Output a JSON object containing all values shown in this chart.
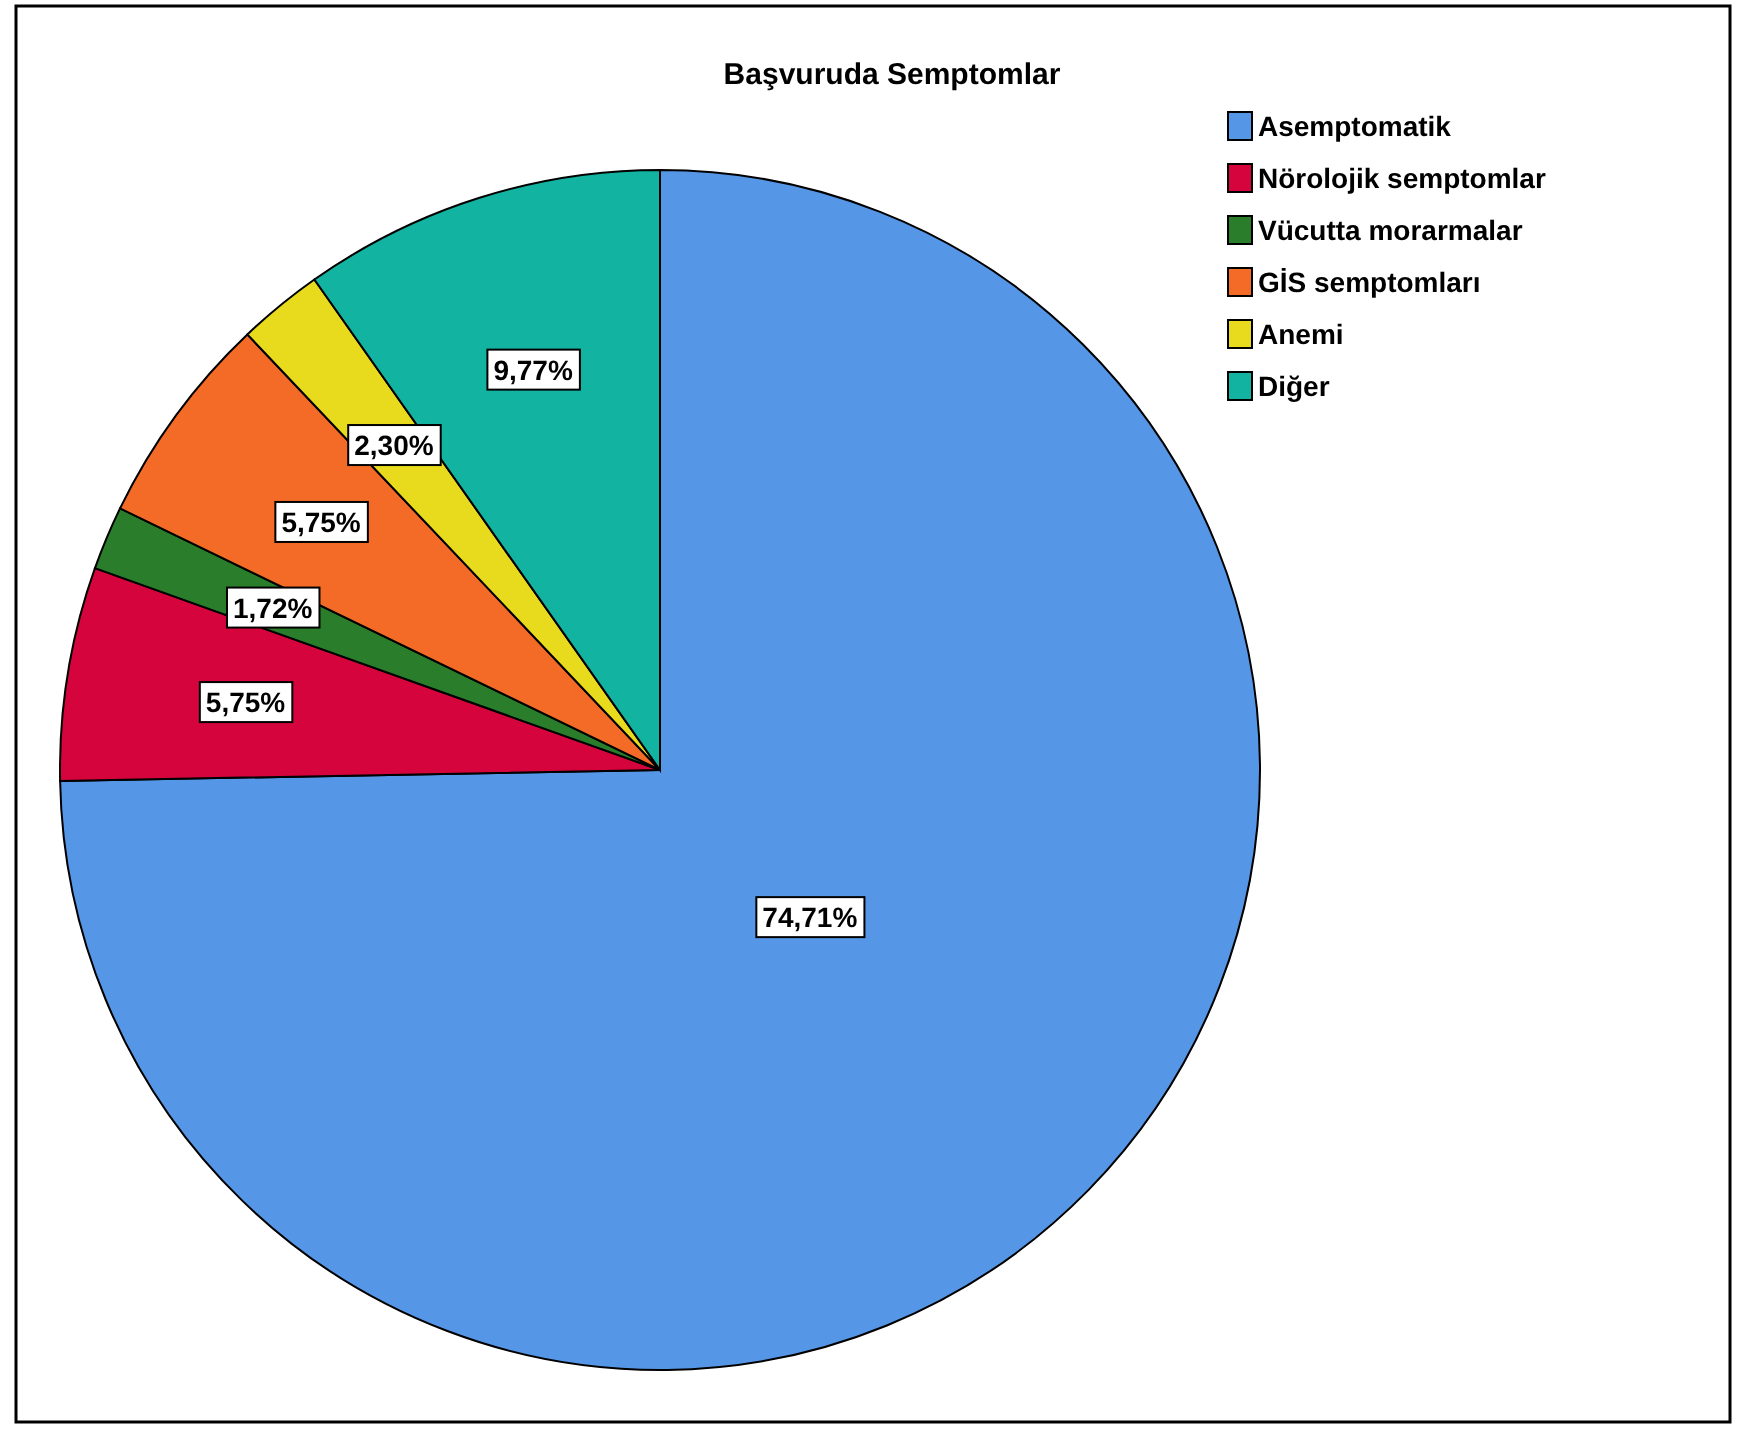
{
  "chart_data": {
    "type": "pie",
    "title": "Başvuruda Semptomlar",
    "categories": [
      "Asemptomatik",
      "Nörolojik semptomlar",
      "Vücutta morarmalar",
      "GİS semptomları",
      "Anemi",
      "Diğer"
    ],
    "values": [
      74.71,
      5.75,
      1.72,
      5.75,
      2.3,
      9.77
    ],
    "value_labels": [
      "74,71%",
      "5,75%",
      "1,72%",
      "5,75%",
      "2,30%",
      "9,77%"
    ],
    "colors": [
      "#5596e6",
      "#d5043c",
      "#2a7d2a",
      "#f36b26",
      "#e8da1c",
      "#12b3a0"
    ],
    "legend": "top right"
  }
}
